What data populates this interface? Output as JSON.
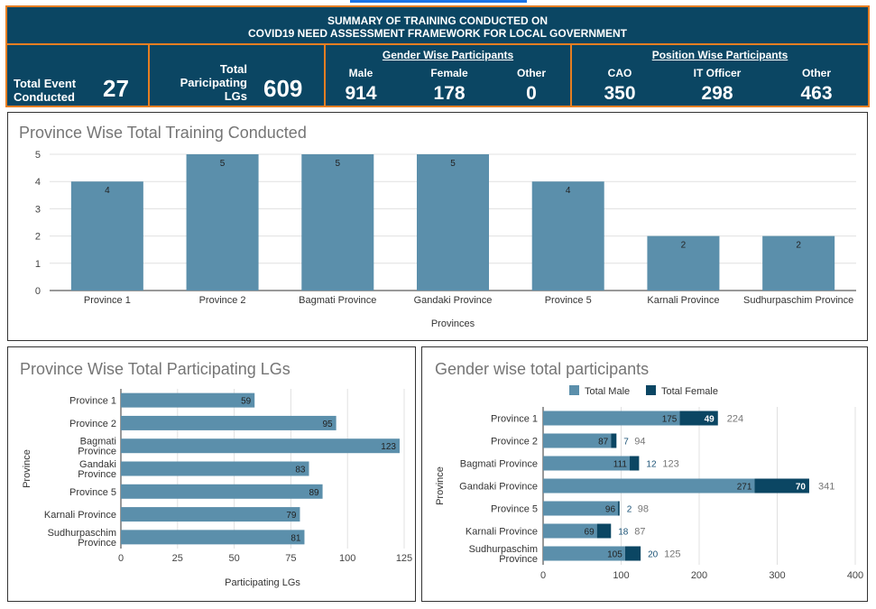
{
  "header": {
    "title_line1": "SUMMARY OF TRAINING CONDUCTED ON",
    "title_line2": "COVID19 NEED ASSESSMENT FRAMEWORK FOR LOCAL GOVERNMENT",
    "total_event_label_1": "Total Event",
    "total_event_label_2": "Conducted",
    "total_event_value": "27",
    "total_lg_label_1": "Total",
    "total_lg_label_2": "Paricipating",
    "total_lg_label_3": "LGs",
    "total_lg_value": "609",
    "gender_title": "Gender Wise Participants",
    "gender": [
      {
        "label": "Male",
        "value": "914"
      },
      {
        "label": "Female",
        "value": "178"
      },
      {
        "label": "Other",
        "value": "0"
      }
    ],
    "position_title": "Position Wise Participants",
    "position": [
      {
        "label": "CAO",
        "value": "350"
      },
      {
        "label": "IT Officer",
        "value": "298"
      },
      {
        "label": "Other",
        "value": "463"
      }
    ]
  },
  "colors": {
    "header_bg": "#0b4663",
    "accent": "#e67e22",
    "bar": "#5b8fab",
    "bar_dark": "#0b4663"
  },
  "chart_data": [
    {
      "type": "bar",
      "title": "Province Wise Total Training Conducted",
      "xlabel": "Provinces",
      "ylabel": "",
      "categories": [
        "Province 1",
        "Province 2",
        "Bagmati Province",
        "Gandaki Province",
        "Province 5",
        "Karnali Province",
        "Sudhurpaschim Province"
      ],
      "values": [
        4,
        5,
        5,
        5,
        4,
        2,
        2
      ],
      "ylim": [
        0,
        5
      ],
      "yticks": [
        "0",
        "1",
        "2",
        "3",
        "4",
        "5"
      ],
      "data_labels": [
        "4",
        "5",
        "5",
        "5",
        "4",
        "2",
        "2"
      ]
    },
    {
      "type": "bar",
      "orientation": "horizontal",
      "title": "Province Wise Total Participating LGs",
      "xlabel": "Participating LGs",
      "ylabel": "Province",
      "categories": [
        "Province 1",
        "Province 2",
        "Bagmati Province",
        "Gandaki Province",
        "Province 5",
        "Karnali Province",
        "Sudhurpaschim Province"
      ],
      "category_lines": [
        [
          "Province 1"
        ],
        [
          "Province 2"
        ],
        [
          "Bagmati",
          "Province"
        ],
        [
          "Gandaki",
          "Province"
        ],
        [
          "Province 5"
        ],
        [
          "Karnali Province"
        ],
        [
          "Sudhurpaschim",
          "Province"
        ]
      ],
      "values": [
        59,
        95,
        123,
        83,
        89,
        79,
        81
      ],
      "xlim": [
        0,
        125
      ],
      "xticks": [
        "0",
        "25",
        "50",
        "75",
        "100",
        "125"
      ],
      "data_labels": [
        "59",
        "95",
        "123",
        "83",
        "89",
        "79",
        "81"
      ]
    },
    {
      "type": "bar",
      "orientation": "horizontal",
      "stacked": true,
      "title": "Gender wise total participants",
      "xlabel": "",
      "ylabel": "Province",
      "legend_position": "top",
      "categories": [
        "Province 1",
        "Province 2",
        "Bagmati Province",
        "Gandaki Province",
        "Province 5",
        "Karnali Province",
        "Sudhurpaschim Province"
      ],
      "category_lines": [
        [
          "Province 1"
        ],
        [
          "Province 2"
        ],
        [
          "Bagmati Province"
        ],
        [
          "Gandaki Province"
        ],
        [
          "Province 5"
        ],
        [
          "Karnali Province"
        ],
        [
          "Sudhurpaschim",
          "Province"
        ]
      ],
      "series": [
        {
          "name": "Total Male",
          "values": [
            175,
            87,
            111,
            271,
            96,
            69,
            105
          ],
          "labels": [
            "175",
            "87",
            "111",
            "271",
            "96",
            "69",
            "105"
          ]
        },
        {
          "name": "Total Female",
          "values": [
            49,
            7,
            12,
            70,
            2,
            18,
            20
          ],
          "labels": [
            "49",
            "7",
            "12",
            "70",
            "2",
            "18",
            "20"
          ]
        }
      ],
      "totals": [
        "224",
        "94",
        "123",
        "341",
        "98",
        "87",
        "125"
      ],
      "xlim": [
        0,
        400
      ],
      "xticks": [
        "0",
        "100",
        "200",
        "300",
        "400"
      ]
    }
  ]
}
